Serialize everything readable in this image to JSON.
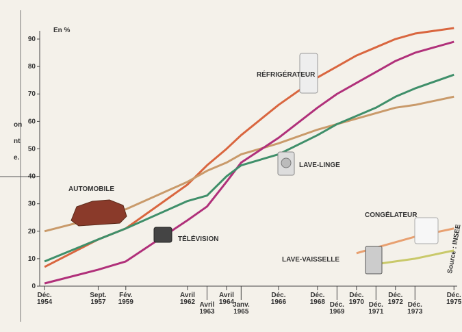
{
  "chart_data": {
    "type": "line",
    "y_unit": "En %",
    "side_note": [
      "on",
      "nt",
      "e."
    ],
    "source": "Source : INSEE",
    "x": [
      "1954-12",
      "1957-09",
      "1959-02",
      "1962-04",
      "1963-04",
      "1964-04",
      "1965-01",
      "1966-12",
      "1968-12",
      "1969-12",
      "1970-12",
      "1971-12",
      "1972-12",
      "1973-12",
      "1975-12"
    ],
    "xlim": [
      "1954-09",
      "1976-02"
    ],
    "xticks": [
      {
        "value": "1954-12",
        "label": "Déc. 1954"
      },
      {
        "value": "1957-09",
        "label": "Sept. 1957"
      },
      {
        "value": "1959-02",
        "label": "Fév. 1959"
      },
      {
        "value": "1962-04",
        "label": "Avril 1962"
      },
      {
        "value": "1963-04",
        "label": "Avril 1963"
      },
      {
        "value": "1964-04",
        "label": "Avril 1964"
      },
      {
        "value": "1965-01",
        "label": "Janv. 1965"
      },
      {
        "value": "1966-12",
        "label": "Déc. 1966"
      },
      {
        "value": "1968-12",
        "label": "Déc. 1968"
      },
      {
        "value": "1969-12",
        "label": "Déc. 1969"
      },
      {
        "value": "1970-12",
        "label": "Déc. 1970"
      },
      {
        "value": "1971-12",
        "label": "Déc. 1971"
      },
      {
        "value": "1972-12",
        "label": "Déc. 1972"
      },
      {
        "value": "1973-12",
        "label": "Déc. 1973"
      },
      {
        "value": "1975-12",
        "label": "Déc. 1975"
      }
    ],
    "ylim": [
      0,
      93
    ],
    "yticks": [
      0,
      10,
      20,
      30,
      40,
      50,
      60,
      70,
      80,
      90
    ],
    "series": [
      {
        "name": "RÉFRIGÉRATEUR",
        "color": "#d9663f",
        "values": [
          7,
          17,
          21,
          37,
          44,
          50,
          55,
          66,
          76,
          80,
          84,
          87,
          90,
          92,
          94
        ]
      },
      {
        "name": "AUTOMOBILE",
        "color": "#c99a6a",
        "values": [
          20,
          25,
          28,
          38,
          42,
          45,
          48,
          52,
          57,
          59,
          61,
          63,
          65,
          66,
          69
        ]
      },
      {
        "name": "TÉLÉVISION",
        "color": "#b0307a",
        "values": [
          1,
          6,
          9,
          24,
          29,
          38,
          45,
          54,
          65,
          70,
          74,
          78,
          82,
          85,
          89
        ]
      },
      {
        "name": "LAVE-LINGE",
        "color": "#3f8f6a",
        "values": [
          9,
          17,
          21,
          31,
          33,
          40,
          44,
          48,
          55,
          59,
          62,
          65,
          69,
          72,
          77
        ]
      },
      {
        "name": "CONGÉLATEUR",
        "color": "#e8a070",
        "values": [
          null,
          null,
          null,
          null,
          null,
          null,
          null,
          null,
          null,
          null,
          12,
          14,
          16,
          18,
          21
        ]
      },
      {
        "name": "LAVE-VAISSELLE",
        "color": "#c9c96a",
        "values": [
          null,
          null,
          null,
          null,
          null,
          null,
          null,
          null,
          null,
          null,
          null,
          8,
          9,
          10,
          13
        ]
      }
    ]
  }
}
